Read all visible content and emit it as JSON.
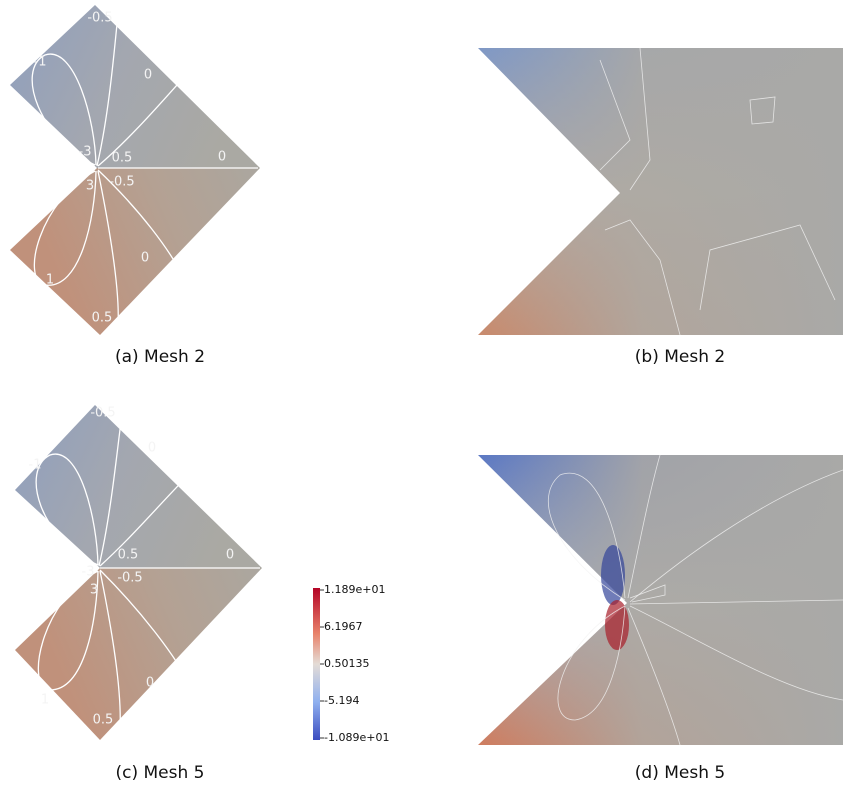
{
  "panels": [
    {
      "caption": "(a) Mesh 2",
      "contour_labels": [
        "-1",
        "-0.5",
        "0",
        "-3",
        "0.5",
        "0",
        "-0.5",
        "3",
        "1",
        "0",
        "0.5"
      ]
    },
    {
      "caption": "(b) Mesh 2"
    },
    {
      "caption": "(c) Mesh 5",
      "contour_labels": [
        "-1",
        "-0.5",
        "0",
        "-3",
        "0.5",
        "0",
        "-0.5",
        "3",
        "1",
        "0",
        "0.5"
      ]
    },
    {
      "caption": "(d) Mesh 5"
    }
  ],
  "colorbar": {
    "labels": [
      "1.189e+01",
      "6.1967",
      "0.50135",
      "-5.194",
      "-1.089e+01"
    ]
  }
}
